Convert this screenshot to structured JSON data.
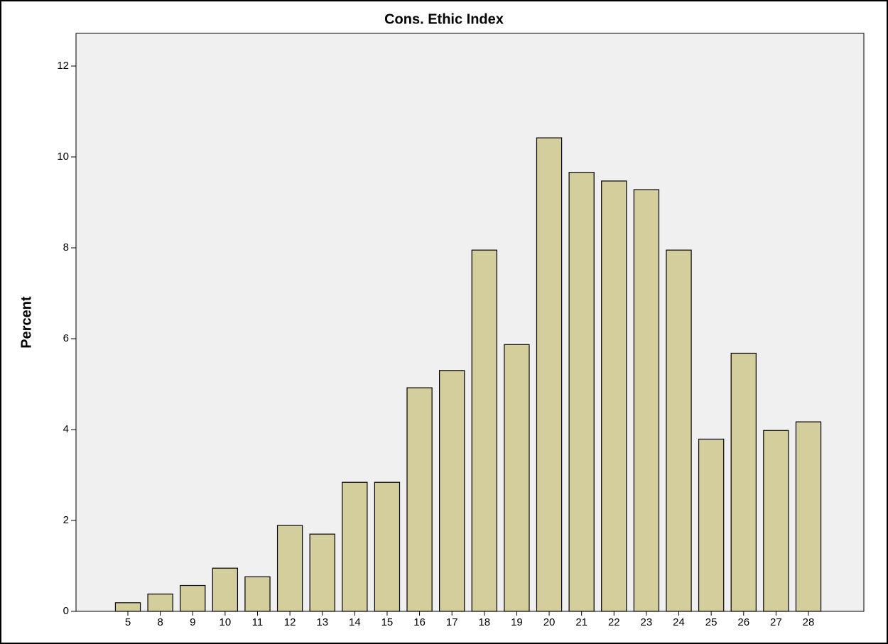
{
  "chart_data": {
    "type": "bar",
    "title": "Cons. Ethic Index",
    "y_label": "Percent",
    "categories": [
      "5",
      "8",
      "9",
      "10",
      "11",
      "12",
      "13",
      "14",
      "15",
      "16",
      "17",
      "18",
      "19",
      "20",
      "21",
      "22",
      "23",
      "24",
      "25",
      "26",
      "27",
      "28"
    ],
    "values": [
      0.19,
      0.38,
      0.57,
      0.95,
      0.76,
      1.89,
      1.7,
      2.84,
      2.84,
      4.92,
      5.3,
      7.95,
      5.87,
      10.42,
      9.66,
      9.47,
      9.28,
      7.95,
      3.79,
      5.68,
      3.98,
      4.17
    ],
    "color": "#d3ce9b",
    "ylim": [
      0,
      12
    ],
    "yticks": [
      0,
      2,
      4,
      6,
      8,
      10,
      12
    ],
    "grid": false
  }
}
